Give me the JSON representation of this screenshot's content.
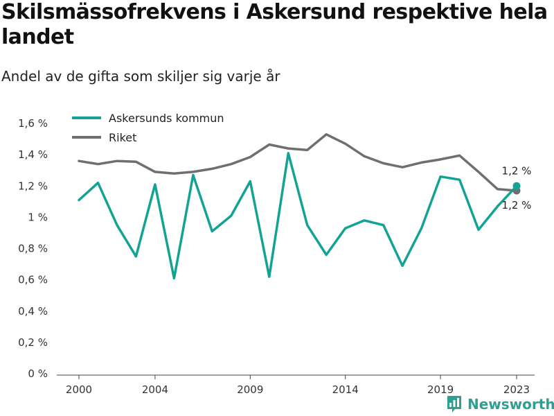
{
  "header": {
    "title": "Skilsmässofrekvens i Askersund respektive hela landet",
    "subtitle": "Andel av de gifta som skiljer sig varje år"
  },
  "brand": {
    "name": "Newsworthy",
    "icon": "bar-chart-logo-icon",
    "color": "#2f9f93"
  },
  "chart_data": {
    "type": "line",
    "x": [
      2000,
      2001,
      2002,
      2003,
      2004,
      2005,
      2006,
      2007,
      2008,
      2009,
      2010,
      2011,
      2012,
      2013,
      2014,
      2015,
      2016,
      2017,
      2018,
      2019,
      2020,
      2021,
      2022,
      2023
    ],
    "xticks": [
      "2000",
      "2004",
      "2009",
      "2014",
      "2019",
      "2023"
    ],
    "yticks": [
      "0 %",
      "0,2 %",
      "0,4 %",
      "0,6 %",
      "0,8 %",
      "1 %",
      "1,2 %",
      "1,4 %",
      "1,6 %"
    ],
    "ylim": [
      0,
      1.6
    ],
    "xlim": [
      2000,
      2023
    ],
    "grid": false,
    "legend_position": "top-left",
    "series": [
      {
        "name": "Askersunds kommun",
        "color": "#13a394",
        "values": [
          1.11,
          1.22,
          0.95,
          0.75,
          1.21,
          0.61,
          1.27,
          0.91,
          1.01,
          1.23,
          0.62,
          1.41,
          0.95,
          0.76,
          0.93,
          0.98,
          0.95,
          0.69,
          0.93,
          1.26,
          1.24,
          0.92,
          1.07,
          1.2
        ],
        "end_label": "1,2 %"
      },
      {
        "name": "Riket",
        "color": "#6f6f6f",
        "values": [
          1.36,
          1.34,
          1.36,
          1.355,
          1.29,
          1.28,
          1.29,
          1.31,
          1.34,
          1.385,
          1.465,
          1.44,
          1.43,
          1.53,
          1.47,
          1.39,
          1.345,
          1.32,
          1.35,
          1.37,
          1.395,
          1.29,
          1.18,
          1.17
        ],
        "end_label": "1,2 %"
      }
    ]
  }
}
